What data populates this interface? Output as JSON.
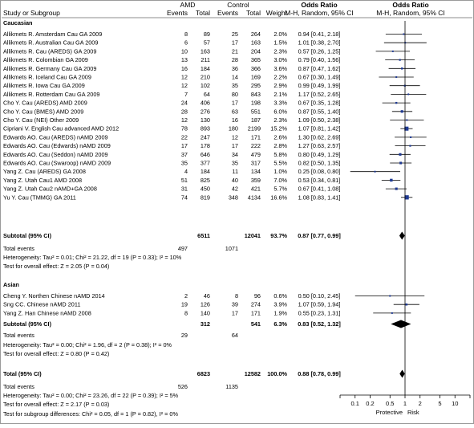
{
  "header": {
    "col_study": "Study or Subgroup",
    "group1": "AMD",
    "group2": "Control",
    "events": "Events",
    "total": "Total",
    "weight": "Weight",
    "or_head": "Odds Ratio",
    "or_sub": "M-H, Random, 95% CI",
    "plot_head": "Odds Ratio",
    "plot_sub": "M-H, Random, 95% CI"
  },
  "groups": [
    {
      "name": "Caucasian",
      "studies": [
        {
          "name": "Allikmets R. Amsterdam Cau GA 2009",
          "e1": "8",
          "t1": "89",
          "e2": "25",
          "t2": "264",
          "w": "2.0%",
          "ci_text": "0.94 [0.41, 2.18]",
          "or": 0.94,
          "lo": 0.41,
          "hi": 2.18,
          "wt": 2.0
        },
        {
          "name": "Allikmets R. Australian Cau GA 2009",
          "e1": "6",
          "t1": "57",
          "e2": "17",
          "t2": "163",
          "w": "1.5%",
          "ci_text": "1.01 [0.38, 2.70]",
          "or": 1.01,
          "lo": 0.38,
          "hi": 2.7,
          "wt": 1.5
        },
        {
          "name": "Allikmets R. Cau (AREDS) GA 2009",
          "e1": "10",
          "t1": "163",
          "e2": "21",
          "t2": "204",
          "w": "2.3%",
          "ci_text": "0.57 [0.26, 1.25]",
          "or": 0.57,
          "lo": 0.26,
          "hi": 1.25,
          "wt": 2.3
        },
        {
          "name": "Allikmets R. Colombian GA 2009",
          "e1": "13",
          "t1": "211",
          "e2": "28",
          "t2": "365",
          "w": "3.0%",
          "ci_text": "0.79 [0.40, 1.56]",
          "or": 0.79,
          "lo": 0.4,
          "hi": 1.56,
          "wt": 3.0
        },
        {
          "name": "Allikmets R. Germany Cau GA 2009",
          "e1": "16",
          "t1": "184",
          "e2": "36",
          "t2": "366",
          "w": "3.6%",
          "ci_text": "0.87 [0.47, 1.62]",
          "or": 0.87,
          "lo": 0.47,
          "hi": 1.62,
          "wt": 3.6
        },
        {
          "name": "Allikmets R. Iceland Cau GA 2009",
          "e1": "12",
          "t1": "210",
          "e2": "14",
          "t2": "169",
          "w": "2.2%",
          "ci_text": "0.67 [0.30, 1.49]",
          "or": 0.67,
          "lo": 0.3,
          "hi": 1.49,
          "wt": 2.2
        },
        {
          "name": "Allikmets R. Iowa Cau GA 2009",
          "e1": "12",
          "t1": "102",
          "e2": "35",
          "t2": "295",
          "w": "2.9%",
          "ci_text": "0.99 [0.49, 1.99]",
          "or": 0.99,
          "lo": 0.49,
          "hi": 1.99,
          "wt": 2.9
        },
        {
          "name": "Allikmets R. Rotterdam Cau GA 2009",
          "e1": "7",
          "t1": "64",
          "e2": "80",
          "t2": "843",
          "w": "2.1%",
          "ci_text": "1.17 [0.52, 2.65]",
          "or": 1.17,
          "lo": 0.52,
          "hi": 2.65,
          "wt": 2.1
        },
        {
          "name": "Cho Y. Cau (AREDS) AMD 2009",
          "e1": "24",
          "t1": "406",
          "e2": "17",
          "t2": "198",
          "w": "3.3%",
          "ci_text": "0.67 [0.35, 1.28]",
          "or": 0.67,
          "lo": 0.35,
          "hi": 1.28,
          "wt": 3.3
        },
        {
          "name": "Cho Y. Cau (BMES) AMD 2009",
          "e1": "28",
          "t1": "276",
          "e2": "63",
          "t2": "551",
          "w": "6.0%",
          "ci_text": "0.87 [0.55, 1.40]",
          "or": 0.87,
          "lo": 0.55,
          "hi": 1.4,
          "wt": 6.0
        },
        {
          "name": "Cho Y. Cau (NEI) Other 2009",
          "e1": "12",
          "t1": "130",
          "e2": "16",
          "t2": "187",
          "w": "2.3%",
          "ci_text": "1.09 [0.50, 2.38]",
          "or": 1.09,
          "lo": 0.5,
          "hi": 2.38,
          "wt": 2.3
        },
        {
          "name": "Cipriani V. English Cau advanced AMD 2012",
          "e1": "78",
          "t1": "893",
          "e2": "180",
          "t2": "2199",
          "w": "15.2%",
          "ci_text": "1.07 [0.81, 1.42]",
          "or": 1.07,
          "lo": 0.81,
          "hi": 1.42,
          "wt": 15.2
        },
        {
          "name": "Edwards AO. Cau (AREDS) nAMD 2009",
          "e1": "22",
          "t1": "247",
          "e2": "12",
          "t2": "171",
          "w": "2.6%",
          "ci_text": "1.30 [0.62, 2.69]",
          "or": 1.3,
          "lo": 0.62,
          "hi": 2.69,
          "wt": 2.6
        },
        {
          "name": "Edwards AO. Cau (Edwards) nAMD 2009",
          "e1": "17",
          "t1": "178",
          "e2": "17",
          "t2": "222",
          "w": "2.8%",
          "ci_text": "1.27 [0.63, 2.57]",
          "or": 1.27,
          "lo": 0.63,
          "hi": 2.57,
          "wt": 2.8
        },
        {
          "name": "Edwards AO. Cau (Seddon) nAMD 2009",
          "e1": "37",
          "t1": "646",
          "e2": "34",
          "t2": "479",
          "w": "5.8%",
          "ci_text": "0.80 [0.49, 1.29]",
          "or": 0.8,
          "lo": 0.49,
          "hi": 1.29,
          "wt": 5.8
        },
        {
          "name": "Edwards AO. Cau (Swaroop) nAMD 2009",
          "e1": "35",
          "t1": "377",
          "e2": "35",
          "t2": "317",
          "w": "5.5%",
          "ci_text": "0.82 [0.50, 1.35]",
          "or": 0.82,
          "lo": 0.5,
          "hi": 1.35,
          "wt": 5.5
        },
        {
          "name": "Yang Z. Cau (AREDS) GA 2008",
          "e1": "4",
          "t1": "184",
          "e2": "11",
          "t2": "134",
          "w": "1.0%",
          "ci_text": "0.25 [0.08, 0.80]",
          "or": 0.25,
          "lo": 0.08,
          "hi": 0.8,
          "wt": 1.0
        },
        {
          "name": "Yang Z. Utah Cau1 AMD 2008",
          "e1": "51",
          "t1": "825",
          "e2": "40",
          "t2": "359",
          "w": "7.0%",
          "ci_text": "0.53 [0.34, 0.81]",
          "or": 0.53,
          "lo": 0.34,
          "hi": 0.81,
          "wt": 7.0
        },
        {
          "name": "Yang Z. Utah Cau2 nAMD+GA 2008",
          "e1": "31",
          "t1": "450",
          "e2": "42",
          "t2": "421",
          "w": "5.7%",
          "ci_text": "0.67 [0.41, 1.08]",
          "or": 0.67,
          "lo": 0.41,
          "hi": 1.08,
          "wt": 5.7
        },
        {
          "name": "Yu Y. Cau (TMMG) GA 2011",
          "e1": "74",
          "t1": "819",
          "e2": "348",
          "t2": "4134",
          "w": "16.6%",
          "ci_text": "1.08 [0.83, 1.41]",
          "or": 1.08,
          "lo": 0.83,
          "hi": 1.41,
          "wt": 16.6
        }
      ],
      "subtotal": {
        "label": "Subtotal (95% CI)",
        "t1": "6511",
        "t2": "12041",
        "w": "93.7%",
        "ci_text": "0.87 [0.77, 0.99]",
        "or": 0.87,
        "lo": 0.77,
        "hi": 0.99
      },
      "total_events": {
        "label": "Total events",
        "e1": "497",
        "e2": "1071"
      },
      "heterogeneity": "Heterogeneity: Tau² = 0.01; Chi² = 21.22, df = 19 (P = 0.33); I² = 10%",
      "overall_effect": "Test for overall effect: Z = 2.05 (P = 0.04)"
    },
    {
      "name": "Asian",
      "studies": [
        {
          "name": "Cheng Y. Northen Chinese nAMD 2014",
          "e1": "2",
          "t1": "46",
          "e2": "8",
          "t2": "96",
          "w": "0.6%",
          "ci_text": "0.50 [0.10, 2.45]",
          "or": 0.5,
          "lo": 0.1,
          "hi": 2.45,
          "wt": 0.6
        },
        {
          "name": "Sng CC. Chinese nAMD 2011",
          "e1": "19",
          "t1": "126",
          "e2": "39",
          "t2": "274",
          "w": "3.9%",
          "ci_text": "1.07 [0.59, 1.94]",
          "or": 1.07,
          "lo": 0.59,
          "hi": 1.94,
          "wt": 3.9
        },
        {
          "name": "Yang Z. Han Chinese nAMD 2008",
          "e1": "8",
          "t1": "140",
          "e2": "17",
          "t2": "171",
          "w": "1.9%",
          "ci_text": "0.55 [0.23, 1.31]",
          "or": 0.55,
          "lo": 0.23,
          "hi": 1.31,
          "wt": 1.9
        }
      ],
      "subtotal": {
        "label": "Subtotal (95% CI)",
        "t1": "312",
        "t2": "541",
        "w": "6.3%",
        "ci_text": "0.83 [0.52, 1.32]",
        "or": 0.83,
        "lo": 0.52,
        "hi": 1.32
      },
      "total_events": {
        "label": "Total events",
        "e1": "29",
        "e2": "64"
      },
      "heterogeneity": "Heterogeneity: Tau² = 0.00; Chi² = 1.96, df = 2 (P = 0.38); I² = 0%",
      "overall_effect": "Test for overall effect: Z = 0.80 (P = 0.42)"
    }
  ],
  "total": {
    "label": "Total (95% CI)",
    "t1": "6823",
    "t2": "12582",
    "w": "100.0%",
    "ci_text": "0.88 [0.78, 0.99]",
    "or": 0.88,
    "lo": 0.78,
    "hi": 0.99
  },
  "total_events": {
    "label": "Total events",
    "e1": "526",
    "e2": "1135"
  },
  "heterogeneity": "Heterogeneity: Tau² = 0.00; Chi² = 23.26, df = 22 (P = 0.39); I² = 5%",
  "overall_effect": "Test for overall effect: Z = 2.17 (P = 0.03)",
  "subgroup_diff": "Test for subgroup differences: Chi² = 0.05, df = 1 (P = 0.82), I² = 0%",
  "axis_labels": {
    "left": "Protective",
    "right": "Risk"
  },
  "chart_data": {
    "type": "forest",
    "scale": "log",
    "xlim": [
      0.05,
      20
    ],
    "ticks": [
      {
        "value": 0.1,
        "label": "0.1"
      },
      {
        "value": 0.2,
        "label": "0.2"
      },
      {
        "value": 0.5,
        "label": "0.5"
      },
      {
        "value": 1,
        "label": "1"
      },
      {
        "value": 2,
        "label": "2"
      },
      {
        "value": 5,
        "label": "5"
      },
      {
        "value": 10,
        "label": "10"
      }
    ],
    "reference_line": 1
  },
  "colors": {
    "marker": "#1f3a93",
    "line": "#000000",
    "rule": "#8c8c8c",
    "ci_color": "#000000"
  }
}
